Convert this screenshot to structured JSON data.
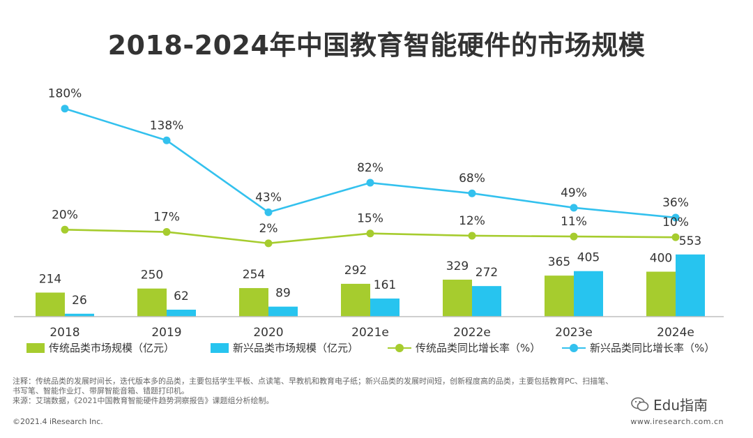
{
  "title": "2018-2024年中国教育智能硬件的市场规模",
  "legend": {
    "traditional_size": "传统品类市场规模（亿元）",
    "emerging_size": "新兴品类市场规模（亿元）",
    "traditional_growth": "传统品类同比增长率（%）",
    "emerging_growth": "新兴品类同比增长率（%）"
  },
  "notes": {
    "line1": "注释：传统品类的发展时间长，迭代版本多的品类，主要包括学生平板、点读笔、早教机和教育电子纸；新兴品类的发展时间短，创新程度高的品类，主要包括教育PC、扫描笔、",
    "line2": "书写笔、智能作业灯、带屏智能音箱、错题打印机。",
    "line3": "来源：艾瑞数据，《2021中国教育智能硬件趋势洞察报告》课题组分析绘制。"
  },
  "copyright": "©2021.4 iResearch Inc.",
  "website": "www.iresearch.com.cn",
  "watermark": "Edu指南",
  "colors": {
    "traditional": "#a6cc2e",
    "emerging": "#27c4ef",
    "emerging_line": "#33c1ee",
    "traditional_line": "#a6cc2e"
  },
  "chart_data": {
    "type": "bar",
    "categories": [
      "2018",
      "2019",
      "2020",
      "2021e",
      "2022e",
      "2023e",
      "2024e"
    ],
    "series": [
      {
        "name": "传统品类市场规模（亿元）",
        "type": "bar",
        "values": [
          214,
          250,
          254,
          292,
          329,
          365,
          400
        ],
        "labels": [
          "214",
          "250",
          "254",
          "292",
          "329",
          "365",
          "400"
        ]
      },
      {
        "name": "新兴品类市场规模（亿元）",
        "type": "bar",
        "values": [
          26,
          62,
          89,
          161,
          272,
          405,
          553
        ],
        "labels": [
          "26",
          "62",
          "89",
          "161",
          "272",
          "405",
          "553"
        ]
      },
      {
        "name": "传统品类同比增长率（%）",
        "type": "line",
        "values": [
          20,
          17,
          2,
          15,
          12,
          11,
          10
        ],
        "labels": [
          "20%",
          "17%",
          "2%",
          "15%",
          "12%",
          "11%",
          "10%"
        ]
      },
      {
        "name": "新兴品类同比增长率（%）",
        "type": "line",
        "values": [
          180,
          138,
          43,
          82,
          68,
          49,
          36
        ],
        "labels": [
          "180%",
          "138%",
          "43%",
          "82%",
          "68%",
          "49%",
          "36%"
        ]
      }
    ],
    "grid": false,
    "legend_position": "bottom"
  }
}
